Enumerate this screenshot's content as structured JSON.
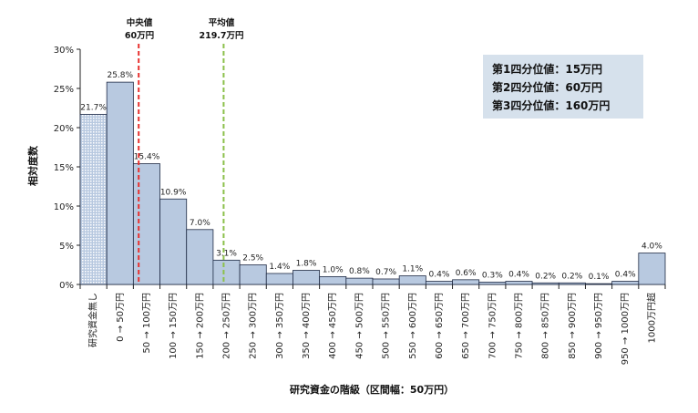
{
  "chart_data": {
    "type": "bar",
    "title": "",
    "xlabel": "研究資金の階級（区間幅：50万円）",
    "ylabel": "相対度数",
    "ylim": [
      0,
      30
    ],
    "yticks": [
      "0%",
      "5%",
      "10%",
      "15%",
      "20%",
      "25%",
      "30%"
    ],
    "grid": false,
    "categories": [
      "研究資金無し",
      "0 → 50万円",
      "50 → 100万円",
      "100 → 150万円",
      "150 → 200万円",
      "200 → 250万円",
      "250 → 300万円",
      "300 → 350万円",
      "350 → 400万円",
      "400 → 450万円",
      "450 → 500万円",
      "500 → 550万円",
      "550 → 600万円",
      "600 → 650万円",
      "650 → 700万円",
      "700 → 750万円",
      "750 → 800万円",
      "800 → 850万円",
      "850 → 900万円",
      "900 → 950万円",
      "950 → 1000万円",
      "1000万円超"
    ],
    "values": [
      21.7,
      25.8,
      15.4,
      10.9,
      7.0,
      3.1,
      2.5,
      1.4,
      1.8,
      1.0,
      0.8,
      0.7,
      1.1,
      0.4,
      0.6,
      0.3,
      0.4,
      0.2,
      0.2,
      0.1,
      0.4,
      4.0
    ],
    "data_labels": [
      "21.7%",
      "25.8%",
      "15.4%",
      "10.9%",
      "7.0%",
      "3.1%",
      "2.5%",
      "1.4%",
      "1.8%",
      "1.0%",
      "0.8%",
      "0.7%",
      "1.1%",
      "0.4%",
      "0.6%",
      "0.3%",
      "0.4%",
      "0.2%",
      "0.2%",
      "0.1%",
      "0.4%",
      "4.0%"
    ],
    "patterned_first_bar": true,
    "colors": {
      "bar_fill": "#b8c9e0",
      "bar_stroke": "#1f2a44",
      "median_line": "#e8312f",
      "mean_line": "#8cc04a",
      "quartile_box": "#d6e1ec",
      "axis": "#222222"
    },
    "markers": [
      {
        "name": "中央値",
        "value_label": "60万円",
        "position_value": 60,
        "style": "red-dashed"
      },
      {
        "name": "平均値",
        "value_label": "219.7万円",
        "position_value": 219.7,
        "style": "green-dashed"
      }
    ],
    "quartiles": [
      "第1四分位値：15万円",
      "第2四分位値：60万円",
      "第3四分位値：160万円"
    ]
  }
}
